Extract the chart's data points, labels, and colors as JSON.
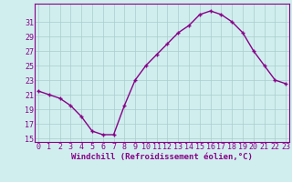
{
  "x": [
    0,
    1,
    2,
    3,
    4,
    5,
    6,
    7,
    8,
    9,
    10,
    11,
    12,
    13,
    14,
    15,
    16,
    17,
    18,
    19,
    20,
    21,
    22,
    23
  ],
  "y": [
    21.5,
    21.0,
    20.5,
    19.5,
    18.0,
    16.0,
    15.5,
    15.5,
    19.5,
    23.0,
    25.0,
    26.5,
    28.0,
    29.5,
    30.5,
    32.0,
    32.5,
    32.0,
    31.0,
    29.5,
    27.0,
    25.0,
    23.0,
    22.5
  ],
  "line_color": "#880088",
  "marker": "+",
  "marker_size": 3.5,
  "marker_linewidth": 1.0,
  "line_width": 1.0,
  "bg_color": "#d0eeee",
  "grid_color": "#aacccc",
  "tick_color": "#880088",
  "label_color": "#880088",
  "xlabel": "Windchill (Refroidissement éolien,°C)",
  "xlabel_fontsize": 6.5,
  "xtick_labels": [
    "0",
    "1",
    "2",
    "3",
    "4",
    "5",
    "6",
    "7",
    "8",
    "9",
    "10",
    "11",
    "12",
    "13",
    "14",
    "15",
    "16",
    "17",
    "18",
    "19",
    "20",
    "21",
    "22",
    "23"
  ],
  "ytick_labels": [
    "15",
    "17",
    "19",
    "21",
    "23",
    "25",
    "27",
    "29",
    "31"
  ],
  "yticks": [
    15,
    17,
    19,
    21,
    23,
    25,
    27,
    29,
    31
  ],
  "ylim": [
    14.5,
    33.5
  ],
  "xlim": [
    -0.3,
    23.3
  ],
  "tick_fontsize": 6.0
}
